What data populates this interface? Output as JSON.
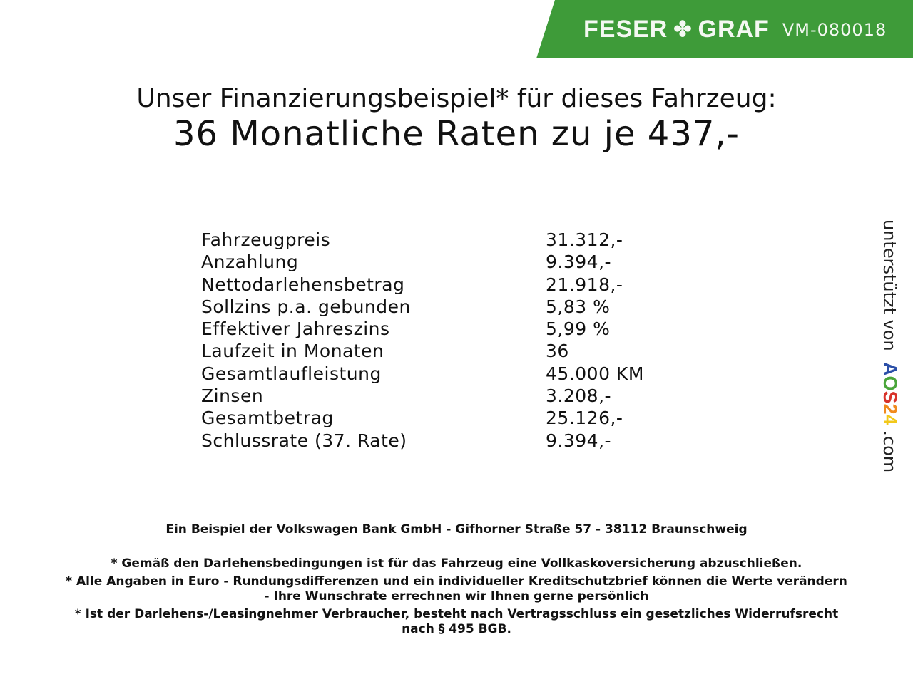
{
  "header": {
    "brand_left": "FESER",
    "brand_right": "GRAF",
    "code": "VM-080018",
    "brand_color": "#3e9b39"
  },
  "title": {
    "line1": "Unser Finanzierungsbeispiel* für dieses Fahrzeug:",
    "line2": "36 Monatliche Raten zu je 437,-"
  },
  "rows": [
    {
      "label": "Fahrzeugpreis",
      "value": "31.312,-"
    },
    {
      "label": "Anzahlung",
      "value": "9.394,-"
    },
    {
      "label": "Nettodarlehensbetrag",
      "value": "21.918,-"
    },
    {
      "label": "Sollzins p.a. gebunden",
      "value": "5,83 %"
    },
    {
      "label": "Effektiver Jahreszins",
      "value": "5,99 %"
    },
    {
      "label": "Laufzeit in Monaten",
      "value": "36"
    },
    {
      "label": "Gesamtlaufleistung",
      "value": "45.000 KM"
    },
    {
      "label": "Zinsen",
      "value": "3.208,-"
    },
    {
      "label": "Gesamtbetrag",
      "value": "25.126,-"
    },
    {
      "label": "Schlussrate (37. Rate)",
      "value": "9.394,-"
    }
  ],
  "footer": {
    "bank": "Ein Beispiel der Volkswagen Bank GmbH - Gifhorner Straße 57 - 38112 Braunschweig",
    "note1": "* Gemäß den Darlehensbedingungen ist für das Fahrzeug eine Vollkaskoversicherung abzuschließen.",
    "note2a": "* Alle Angaben in Euro - Rundungsdifferenzen und ein individueller Kreditschutzbrief können die Werte verändern",
    "note2b": "- Ihre Wunschrate errechnen wir Ihnen gerne persönlich",
    "note3a": "* Ist der Darlehens-/Leasingnehmer Verbraucher, besteht nach Vertragsschluss ein gesetzliches Widerrufsrecht",
    "note3b": "nach § 495 BGB."
  },
  "side": {
    "prefix": "unterstützt von",
    "logo": [
      "A",
      "O",
      "S",
      "2",
      "4"
    ],
    "logo_colors": [
      "#2b4fa8",
      "#4aa53a",
      "#d8322a",
      "#f08a1d",
      "#f2c81a"
    ],
    "suffix": ".com"
  }
}
